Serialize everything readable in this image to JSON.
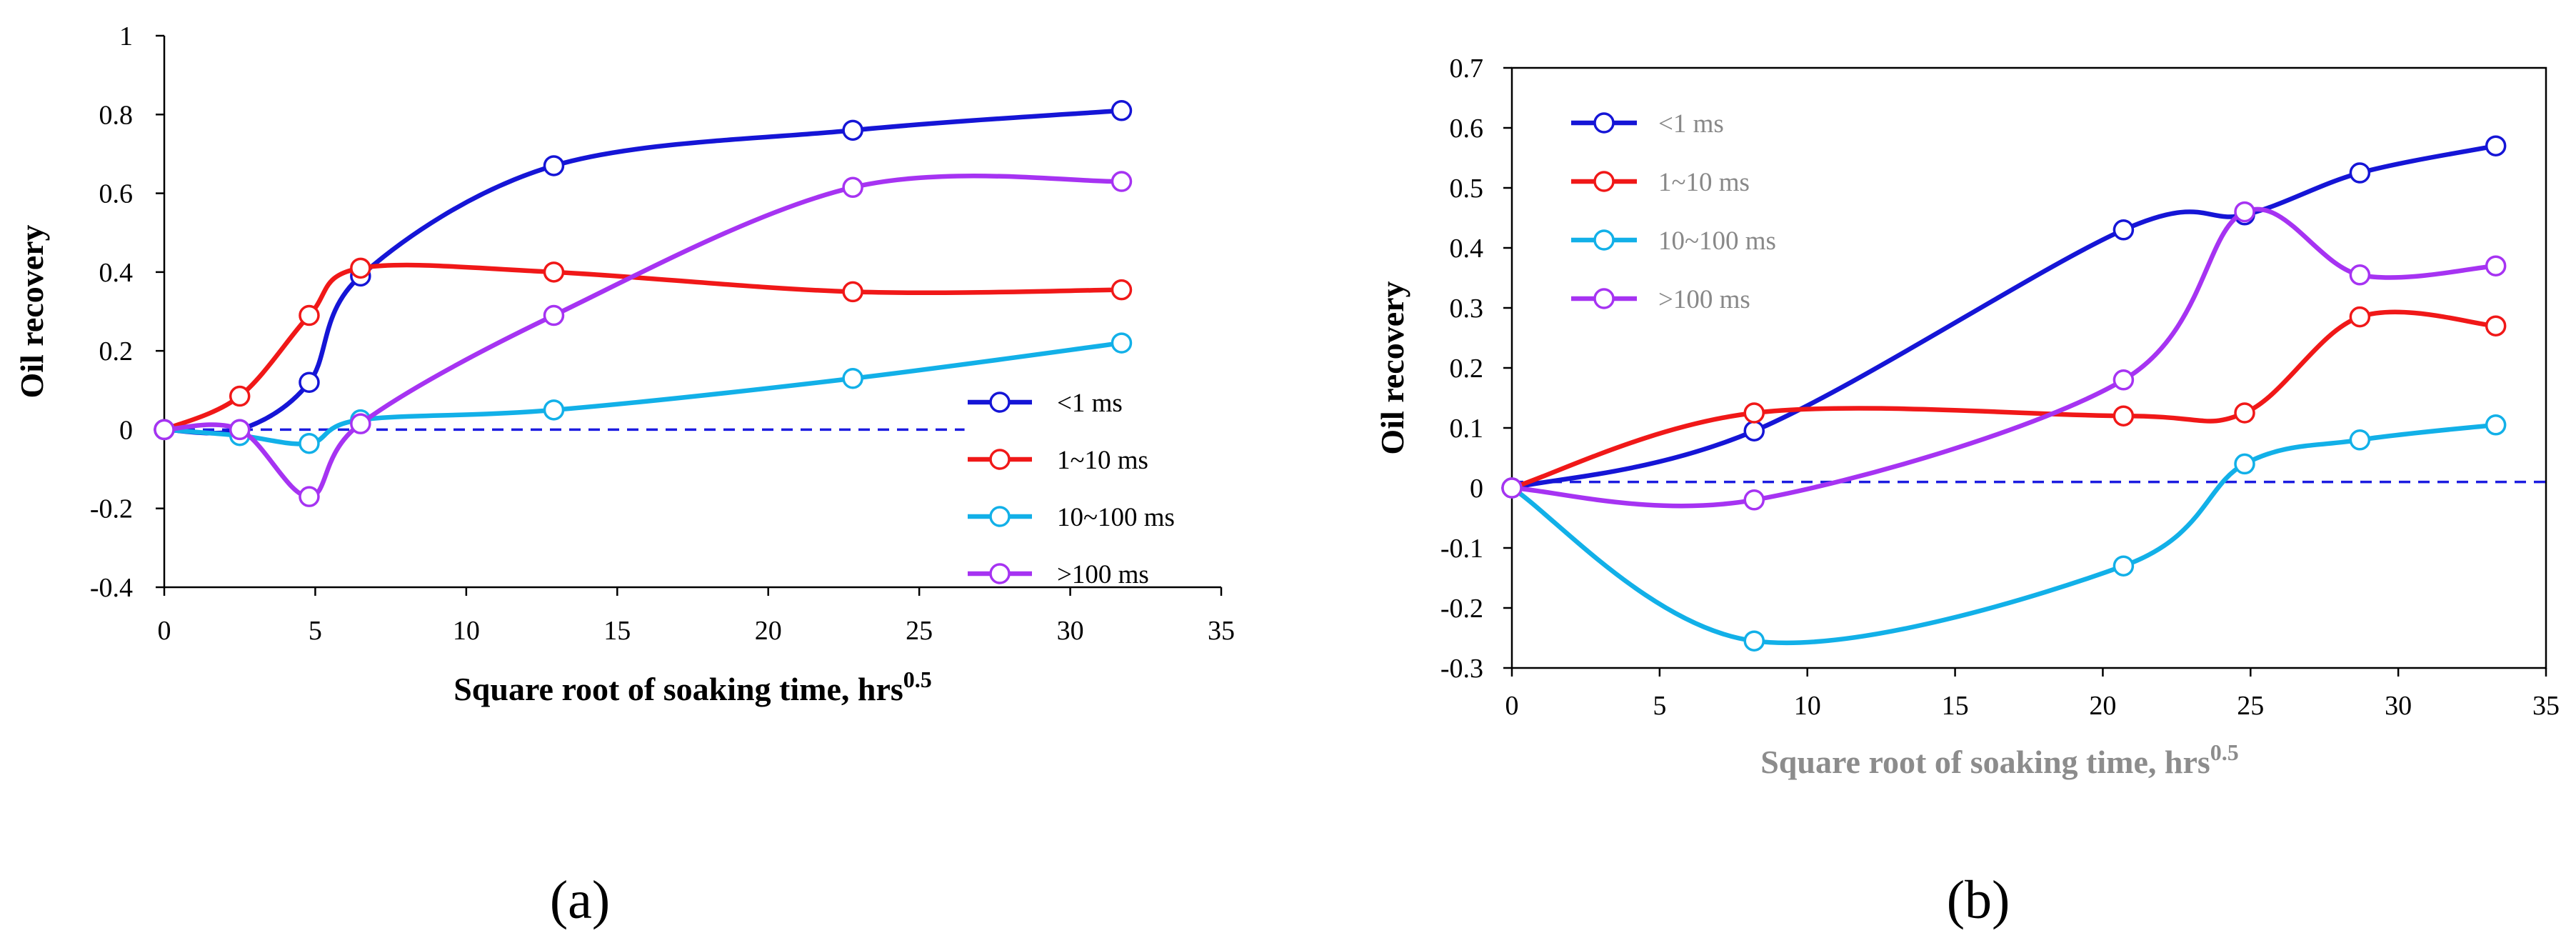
{
  "chart_data": [
    {
      "type": "line",
      "panel_label": "(a)",
      "xlabel": "Square root of soaking time, hrs",
      "xlabel_sup": "0.5",
      "ylabel": "Oil recovery",
      "xlim": [
        0,
        35
      ],
      "ylim": [
        -0.4,
        1
      ],
      "xticks": [
        0,
        5,
        10,
        15,
        20,
        25,
        30,
        35
      ],
      "yticks": [
        -0.4,
        -0.2,
        0,
        0.2,
        0.4,
        0.6,
        0.8,
        1
      ],
      "ytick_labels": [
        "-0.4",
        "-0.2",
        "0",
        "0.2",
        "0.4",
        "0.6",
        "0.8",
        "1"
      ],
      "xtick_labels": [
        "0",
        "5",
        "10",
        "15",
        "20",
        "25",
        "30",
        "35"
      ],
      "legend_position": "lower-right",
      "reference_line": {
        "y": 0,
        "x_end": 26.5,
        "style": "dashed",
        "color": "#1c1ce0"
      },
      "series": [
        {
          "name": "<1 ms",
          "color": "#1515d6",
          "x": [
            0,
            2.5,
            4.8,
            6.5,
            12.9,
            22.8,
            31.7
          ],
          "y": [
            0,
            0,
            0.12,
            0.39,
            0.67,
            0.76,
            0.81
          ],
          "label_color": "#000000"
        },
        {
          "name": "1~10 ms",
          "color": "#f01818",
          "x": [
            0,
            2.5,
            4.8,
            6.5,
            12.9,
            22.8,
            31.7
          ],
          "y": [
            0,
            0.085,
            0.29,
            0.41,
            0.4,
            0.35,
            0.355
          ],
          "label_color": "#000000"
        },
        {
          "name": "10~100 ms",
          "color": "#12b0e8",
          "x": [
            0,
            2.5,
            4.8,
            6.5,
            12.9,
            22.8,
            31.7
          ],
          "y": [
            0,
            -0.015,
            -0.035,
            0.025,
            0.05,
            0.13,
            0.22
          ],
          "label_color": "#000000"
        },
        {
          "name": ">100 ms",
          "color": "#a633f2",
          "x": [
            0,
            2.5,
            4.8,
            6.5,
            12.9,
            22.8,
            31.7
          ],
          "y": [
            0,
            0,
            -0.17,
            0.015,
            0.29,
            0.615,
            0.63
          ],
          "label_color": "#000000"
        }
      ]
    },
    {
      "type": "line",
      "panel_label": "(b)",
      "xlabel": "Square root of soaking time, hrs",
      "xlabel_sup": "0.5",
      "ylabel": "Oil recovery",
      "xlim": [
        0,
        35
      ],
      "ylim": [
        -0.3,
        0.7
      ],
      "xticks": [
        0,
        5,
        10,
        15,
        20,
        25,
        30,
        35
      ],
      "yticks": [
        -0.3,
        -0.2,
        -0.1,
        0,
        0.1,
        0.2,
        0.3,
        0.4,
        0.5,
        0.6,
        0.7
      ],
      "ytick_labels": [
        "-0.3",
        "-0.2",
        "-0.1",
        "0",
        "0.1",
        "0.2",
        "0.3",
        "0.4",
        "0.5",
        "0.6",
        "0.7"
      ],
      "xtick_labels": [
        "0",
        "5",
        "10",
        "15",
        "20",
        "25",
        "30",
        "35"
      ],
      "legend_position": "top-left",
      "reference_line": {
        "y": 0.01,
        "x_end": 35,
        "style": "dashed",
        "color": "#1c1ce0"
      },
      "series": [
        {
          "name": "<1 ms",
          "color": "#1515d6",
          "x": [
            0,
            8.2,
            20.7,
            24.8,
            28.7,
            33.3
          ],
          "y": [
            0,
            0.095,
            0.43,
            0.455,
            0.525,
            0.57
          ],
          "label_color": "#888888"
        },
        {
          "name": "1~10 ms",
          "color": "#f01818",
          "x": [
            0,
            8.2,
            20.7,
            24.8,
            28.7,
            33.3
          ],
          "y": [
            0,
            0.125,
            0.12,
            0.125,
            0.285,
            0.27
          ],
          "label_color": "#888888"
        },
        {
          "name": "10~100 ms",
          "color": "#12b0e8",
          "x": [
            0,
            8.2,
            20.7,
            24.8,
            28.7,
            33.3
          ],
          "y": [
            0,
            -0.255,
            -0.13,
            0.04,
            0.08,
            0.105
          ],
          "label_color": "#888888"
        },
        {
          "name": ">100 ms",
          "color": "#a633f2",
          "x": [
            0,
            8.2,
            20.7,
            24.8,
            28.7,
            33.3
          ],
          "y": [
            0,
            -0.02,
            0.18,
            0.46,
            0.355,
            0.37
          ],
          "label_color": "#888888"
        }
      ]
    }
  ]
}
